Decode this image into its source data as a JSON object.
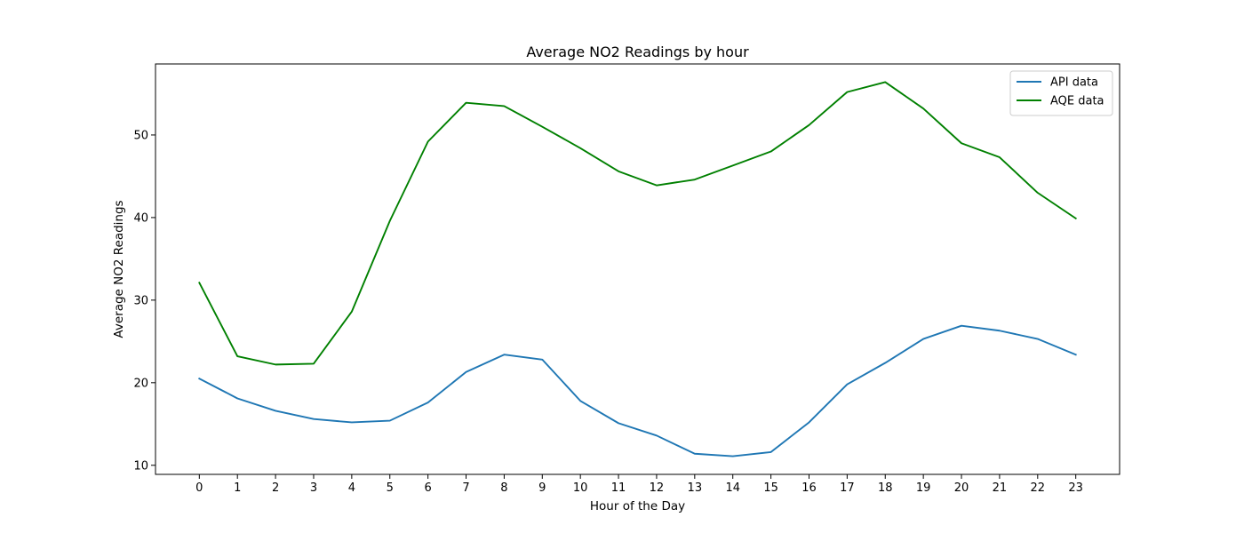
{
  "chart_data": {
    "type": "line",
    "title": "Average NO2 Readings by hour",
    "xlabel": "Hour of the Day",
    "ylabel": "Average NO2 Readings",
    "x": [
      0,
      1,
      2,
      3,
      4,
      5,
      6,
      7,
      8,
      9,
      10,
      11,
      12,
      13,
      14,
      15,
      16,
      17,
      18,
      19,
      20,
      21,
      22,
      23
    ],
    "xlim": [
      -1.15,
      24.15
    ],
    "ylim": [
      8.9,
      58.6
    ],
    "yticks": [
      10,
      20,
      30,
      40,
      50
    ],
    "grid": false,
    "legend_position": "upper right",
    "series": [
      {
        "name": "API data",
        "color": "#1f77b4",
        "values": [
          20.5,
          18.1,
          16.6,
          15.6,
          15.2,
          15.4,
          17.6,
          21.3,
          23.4,
          22.8,
          17.8,
          15.1,
          13.6,
          11.4,
          11.1,
          11.6,
          15.2,
          19.8,
          22.4,
          25.3,
          26.9,
          26.3,
          25.3,
          23.4
        ]
      },
      {
        "name": "AQE data",
        "color": "#008000",
        "values": [
          32.1,
          23.2,
          22.2,
          22.3,
          28.6,
          39.6,
          49.2,
          53.9,
          53.5,
          51.0,
          48.4,
          45.6,
          43.9,
          44.6,
          46.3,
          48.0,
          51.2,
          55.2,
          56.4,
          53.2,
          49.0,
          47.3,
          43.0,
          39.9
        ]
      }
    ]
  }
}
